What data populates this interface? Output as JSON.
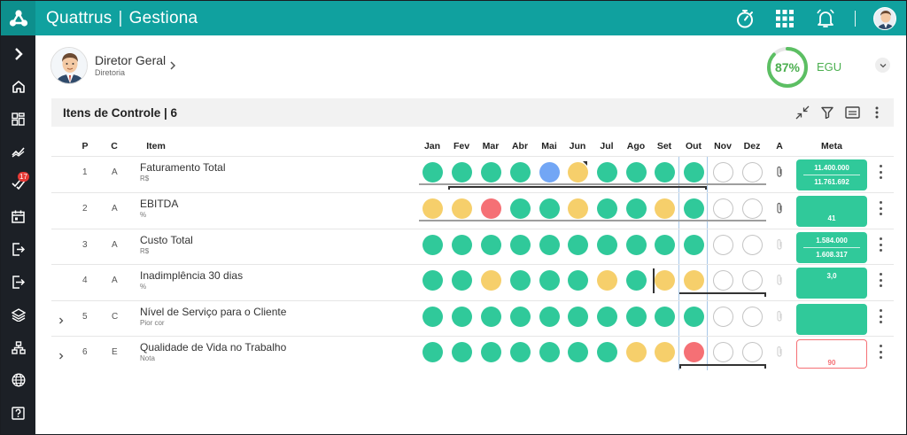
{
  "app": {
    "brand": "Quattrus",
    "module": "Gestiona"
  },
  "topbar_icons": [
    "stopwatch-icon",
    "apps-grid-icon",
    "bell-icon",
    "user-avatar"
  ],
  "sidebar": {
    "items": [
      {
        "name": "expand-menu-icon"
      },
      {
        "name": "home-icon"
      },
      {
        "name": "dashboard-icon"
      },
      {
        "name": "trend-icon"
      },
      {
        "name": "tasks-icon",
        "badge": "17"
      },
      {
        "name": "calendar-icon"
      },
      {
        "name": "login-icon"
      },
      {
        "name": "logout-icon"
      },
      {
        "name": "layers-icon"
      },
      {
        "name": "hierarchy-icon"
      },
      {
        "name": "globe-icon"
      },
      {
        "name": "help-icon"
      }
    ]
  },
  "header": {
    "person_name": "Diretor Geral",
    "person_role": "Diretoria",
    "score": "87%",
    "score_fraction": 0.87,
    "score_label": "EGU"
  },
  "panel": {
    "title": "Itens de Controle | 6"
  },
  "columns": {
    "p": "P",
    "c": "C",
    "item": "Item",
    "months": [
      "Jan",
      "Fev",
      "Mar",
      "Abr",
      "Mai",
      "Jun",
      "Jul",
      "Ago",
      "Set",
      "Out",
      "Nov",
      "Dez"
    ],
    "a": "A",
    "meta": "Meta"
  },
  "rows": [
    {
      "p": "1",
      "c": "A",
      "name": "Faturamento Total",
      "unit": "R$",
      "expandable": false,
      "status": [
        "g",
        "g",
        "g",
        "g",
        "b",
        "y",
        "g",
        "g",
        "g",
        "g",
        "e",
        "e"
      ],
      "meta": [
        "11.400.000",
        "11.761.692"
      ],
      "meta_style": "filled"
    },
    {
      "p": "2",
      "c": "A",
      "name": "EBITDA",
      "unit": "%",
      "expandable": false,
      "status": [
        "y",
        "y",
        "r",
        "g",
        "g",
        "y",
        "g",
        "g",
        "y",
        "g",
        "e",
        "e"
      ],
      "meta": [
        "",
        "41"
      ],
      "meta_style": "filled"
    },
    {
      "p": "3",
      "c": "A",
      "name": "Custo Total",
      "unit": "R$",
      "expandable": false,
      "status": [
        "g",
        "g",
        "g",
        "g",
        "g",
        "g",
        "g",
        "g",
        "g",
        "g",
        "e",
        "e"
      ],
      "meta": [
        "1.584.000",
        "1.608.317"
      ],
      "meta_style": "filled"
    },
    {
      "p": "4",
      "c": "A",
      "name": "Inadimplência 30 dias",
      "unit": "%",
      "expandable": false,
      "status": [
        "g",
        "g",
        "y",
        "g",
        "g",
        "g",
        "y",
        "g",
        "y",
        "y",
        "e",
        "e"
      ],
      "meta": [
        "3,0",
        ""
      ],
      "meta_style": "filled"
    },
    {
      "p": "5",
      "c": "C",
      "name": "Nível de Serviço para o Cliente",
      "unit": "Pior cor",
      "expandable": true,
      "status": [
        "g",
        "g",
        "g",
        "g",
        "g",
        "g",
        "g",
        "g",
        "g",
        "g",
        "e",
        "e"
      ],
      "meta": [
        "",
        ""
      ],
      "meta_style": "filled"
    },
    {
      "p": "6",
      "c": "E",
      "name": "Qualidade de Vida no Trabalho",
      "unit": "Nota",
      "expandable": true,
      "status": [
        "g",
        "g",
        "g",
        "g",
        "g",
        "g",
        "g",
        "y",
        "y",
        "r",
        "e",
        "e"
      ],
      "meta": [
        "",
        "90"
      ],
      "meta_style": "outline"
    }
  ]
}
